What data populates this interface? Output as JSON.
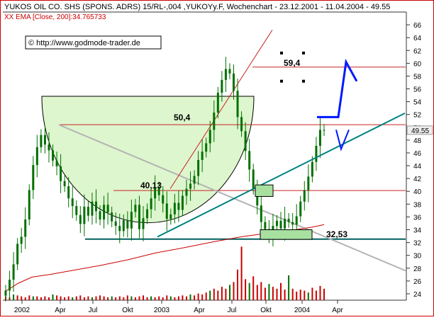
{
  "header": {
    "title": "YUKOS OIL CO. SHS (SPONS. ADRS) 15/RL-,004 ,YUKOYy.F, Wochenchart - 23.12.2001 - 11.04.2004 - 49.55",
    "indicator": "XX EMA [Close, 200]:34.765733",
    "watermark": "© http://www.godmode-trader.de"
  },
  "colors": {
    "candle": "#007000",
    "ema": "#cc0000",
    "volume": "#cc0000",
    "trendline": "#008080",
    "support": "#006060",
    "resistance": "#cc2222",
    "gray_line": "#b4b4b4",
    "cup_fill": "#d9f5c9",
    "box_fill": "#a8e0a0",
    "projection": "#0018ff",
    "frame": "#cc0000"
  },
  "chart_data": {
    "type": "candlestick",
    "title": "YUKOS OIL CO. SHS (SPONS. ADRS) 15/RL-,004 ,YUKOYy.F, Wochenchart - 23.12.2001 - 11.04.2004 - 49.55",
    "x_labels": [
      "2002",
      "Apr",
      "Jul",
      "Okt",
      "2003",
      "Apr",
      "Jul",
      "Okt",
      "2004",
      "Apr"
    ],
    "y_ticks": [
      24,
      26,
      28,
      30,
      32,
      34,
      36,
      38,
      40,
      42,
      44,
      46,
      48,
      50,
      52,
      54,
      56,
      58,
      60,
      62,
      64,
      66
    ],
    "ylim": [
      23,
      68
    ],
    "last_price": "49.55",
    "levels": [
      {
        "label": "59,4",
        "value": 59.4
      },
      {
        "label": "50,4",
        "value": 50.4
      },
      {
        "label": "40,13",
        "value": 40.13
      },
      {
        "label": "32,53",
        "value": 32.53
      }
    ],
    "ema": {
      "name": "EMA [Close, 200]",
      "last": 34.765733
    },
    "close": [
      24.5,
      26.2,
      28.6,
      31.8,
      32.9,
      35.6,
      40.2,
      44.1,
      46.9,
      48.8,
      47.3,
      46.4,
      44.8,
      43.9,
      41.6,
      40.8,
      38.9,
      37.7,
      36.3,
      34.9,
      37.6,
      36.2,
      38.4,
      36.9,
      35.6,
      37.9,
      36.7,
      35.3,
      34.6,
      33.8,
      35.5,
      34.2,
      36.8,
      37.9,
      34.1,
      35.8,
      37.2,
      38.9,
      40.6,
      39.4,
      38.1,
      35.7,
      36.4,
      38.2,
      37.1,
      39.3,
      40.4,
      41.2,
      42.4,
      44.9,
      46.2,
      47.5,
      49.6,
      52.3,
      55.4,
      57.4,
      59.1,
      58.4,
      55.7,
      51.6,
      49.4,
      46.3,
      43.4,
      40.4,
      37.8,
      35.2,
      34.1,
      33.3,
      34.6,
      35.4,
      34.2,
      35.7,
      35.2,
      34.8,
      36.1,
      38.4,
      40.2,
      42.3,
      44.6,
      47.1,
      49.6,
      49.55
    ],
    "volume": [
      0.4,
      0.3,
      0.6,
      0.5,
      0.4,
      0.3,
      0.5,
      0.4,
      0.4,
      0.3,
      0.4,
      0.3,
      0.6,
      0.5,
      0.4,
      0.3,
      0.4,
      0.3,
      0.4,
      0.5,
      0.3,
      0.4,
      0.3,
      0.4,
      0.5,
      0.4,
      0.3,
      0.4,
      0.3,
      0.4,
      0.3,
      0.5,
      0.4,
      0.3,
      0.4,
      0.5,
      0.3,
      0.4,
      0.3,
      0.4,
      0.3,
      0.5,
      0.4,
      0.3,
      0.4,
      0.5,
      0.4,
      0.6,
      0.5,
      0.7,
      0.6,
      0.8,
      1.0,
      1.2,
      1.0,
      1.4,
      1.2,
      1.6,
      1.9,
      3.2,
      5.6,
      2.2,
      1.8,
      2.5,
      1.6,
      1.9,
      1.3,
      1.7,
      1.4,
      1.2,
      1.8,
      1.1,
      2.6,
      1.2,
      0.9,
      1.1,
      1.0,
      0.8,
      1.3,
      1.0,
      1.5,
      1.2
    ],
    "annotations": [
      "50,4",
      "40,13",
      "59,4",
      "32,53"
    ]
  }
}
